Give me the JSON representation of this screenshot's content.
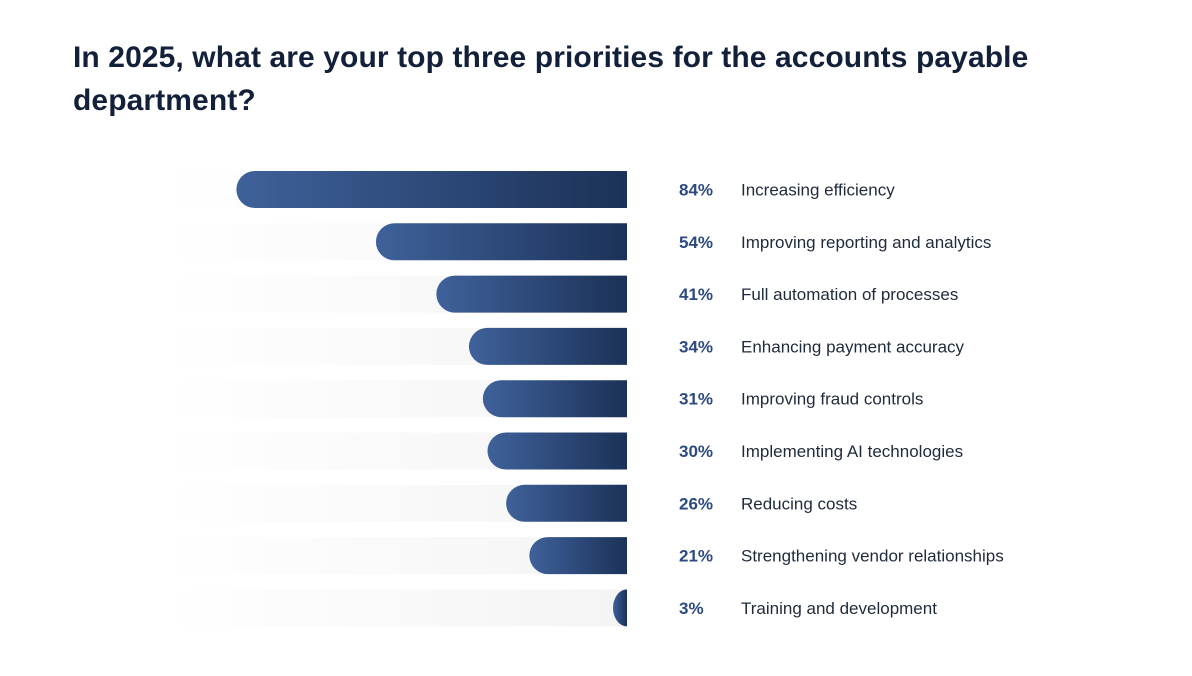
{
  "title": "In 2025, what are your top three priorities for the accounts payable department?",
  "colors": {
    "title": "#13203a",
    "bar_light": "#3f619a",
    "bar_dark": "#1b3258",
    "percent_text": "#2c4a80",
    "label_text": "#1f2a3a",
    "track": "#f4f4f4"
  },
  "chart_data": {
    "type": "bar",
    "orientation": "horizontal",
    "xlim": [
      0,
      100
    ],
    "grid": false,
    "legend": "none",
    "categories": [
      "Increasing efficiency",
      "Improving reporting and analytics",
      "Full automation of processes",
      "Enhancing payment accuracy",
      "Improving fraud controls",
      "Implementing AI technologies",
      "Reducing costs",
      "Strengthening vendor relationships",
      "Training and development"
    ],
    "values": [
      84,
      54,
      41,
      34,
      31,
      30,
      26,
      21,
      3
    ],
    "value_labels": [
      "84%",
      "54%",
      "41%",
      "34%",
      "31%",
      "30%",
      "26%",
      "21%",
      "3%"
    ]
  }
}
